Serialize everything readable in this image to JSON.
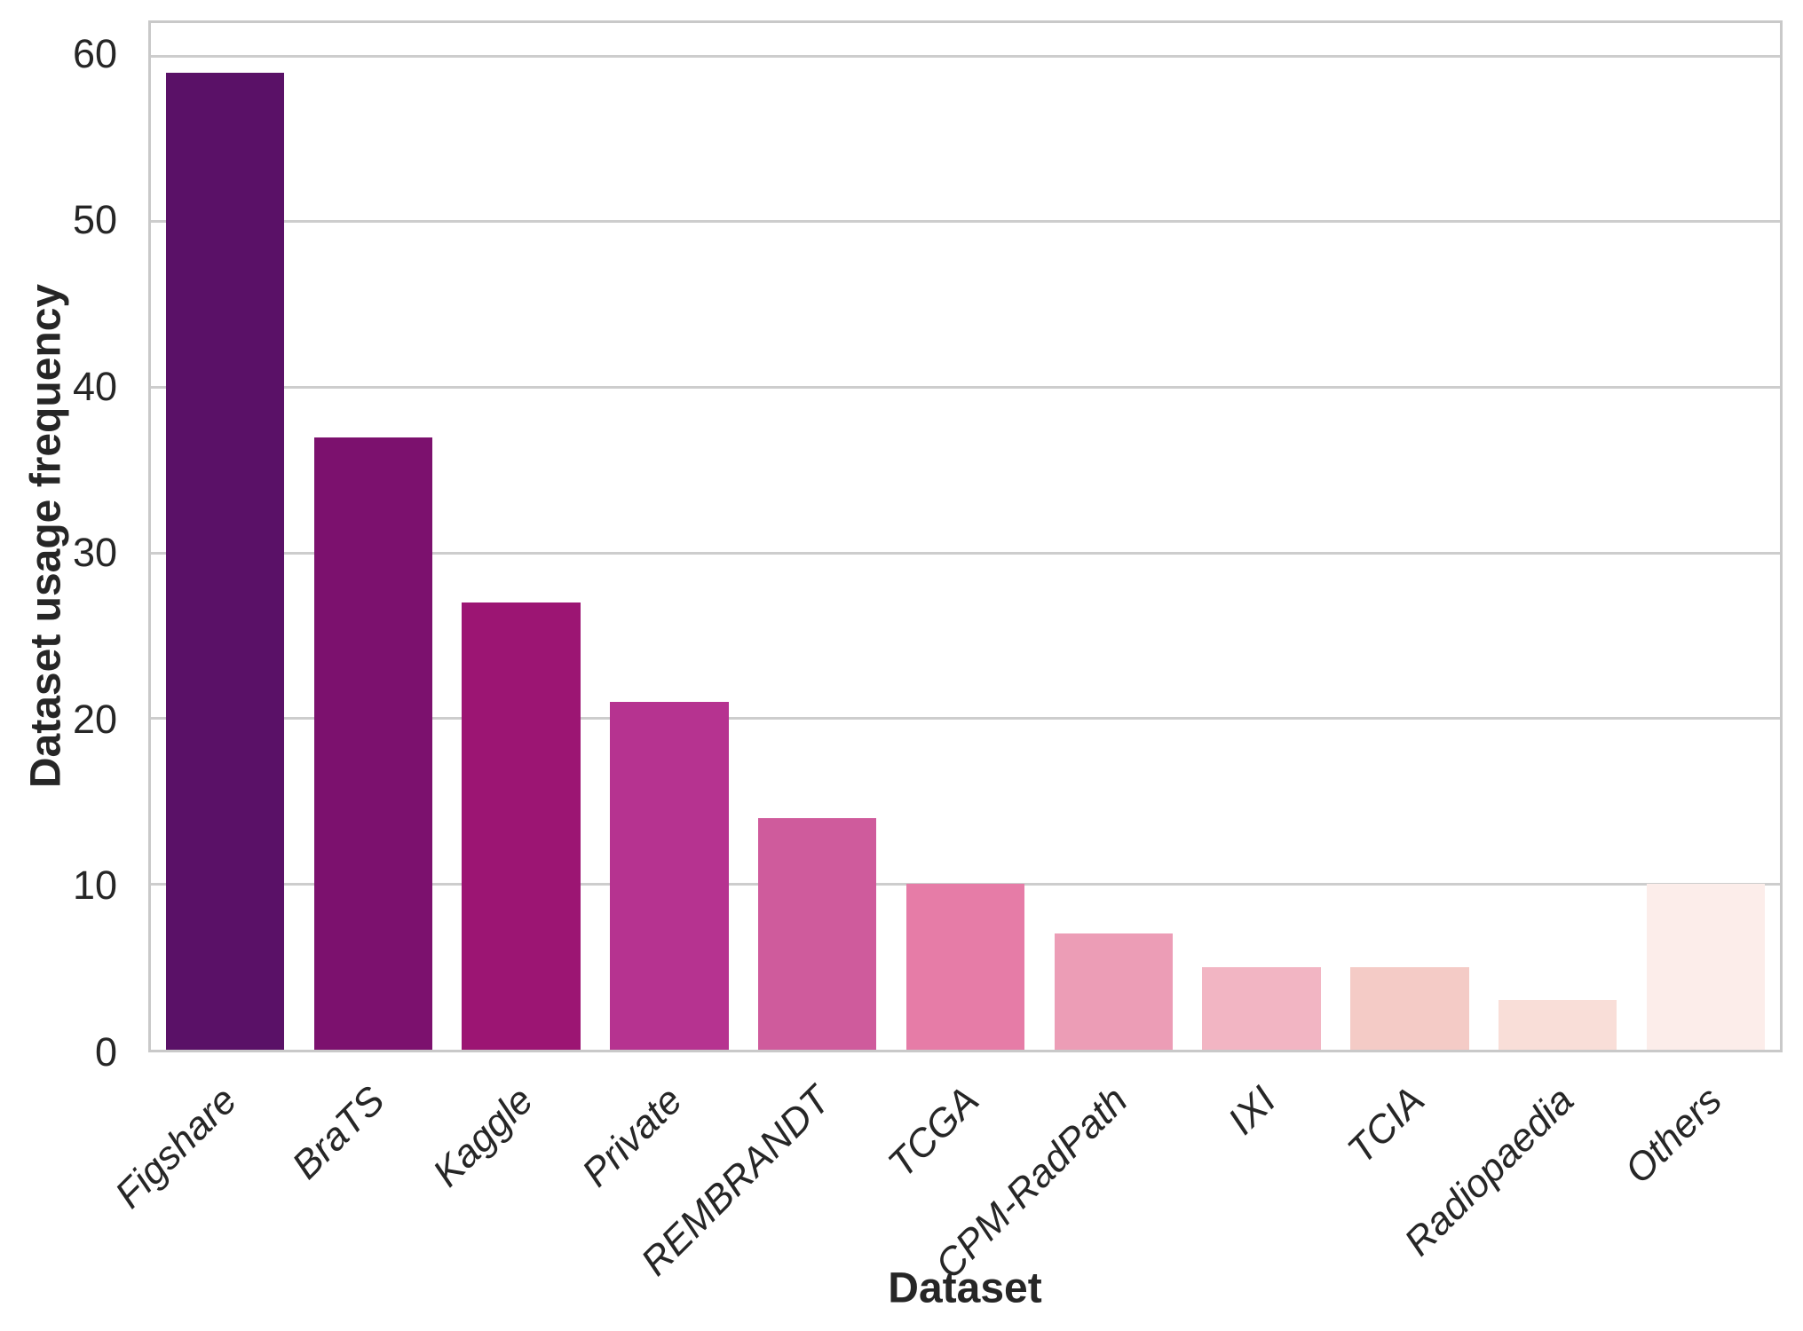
{
  "chart_data": {
    "type": "bar",
    "title": "",
    "xlabel": "Dataset",
    "ylabel": "Dataset usage frequency",
    "categories": [
      "Figshare",
      "BraTS",
      "Kaggle",
      "Private",
      "REMBRANDT",
      "TCGA",
      "CPM-RadPath",
      "IXI",
      "TCIA",
      "Radiopaedia",
      "Others"
    ],
    "values": [
      59,
      37,
      27,
      21,
      14,
      10,
      7,
      5,
      5,
      3,
      10
    ],
    "bar_colors": [
      "#5a1167",
      "#7c116e",
      "#9c1573",
      "#b63390",
      "#cf5b9c",
      "#e67ca7",
      "#ec9db6",
      "#f2b5c3",
      "#f4cbc6",
      "#f9ded8",
      "#fcedea"
    ],
    "ylim": [
      0,
      62
    ],
    "yticks": [
      0,
      10,
      20,
      30,
      40,
      50,
      60
    ],
    "grid": "horizontal",
    "legend": "none",
    "palette_name": "RdPu_r",
    "colors": {
      "grid": "#cdcdcd",
      "spine": "#c9c9c9",
      "text": "#262626",
      "background": "#ffffff"
    }
  }
}
